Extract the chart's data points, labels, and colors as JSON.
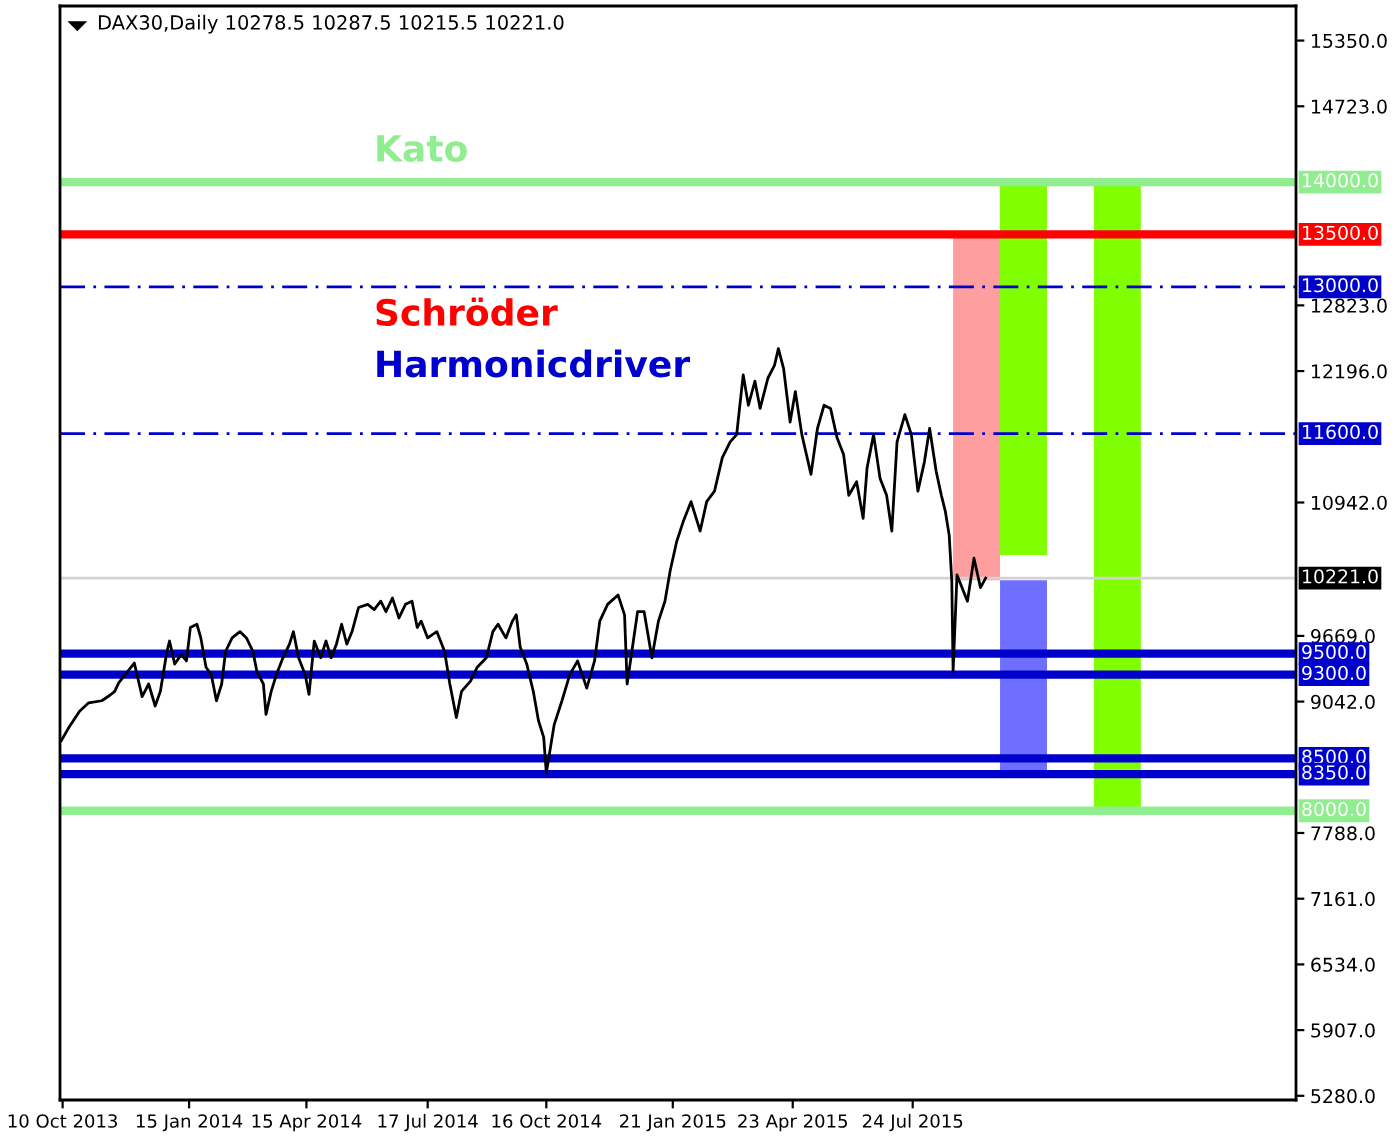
{
  "chart_data": {
    "type": "line",
    "title": "DAX30,Daily 10278.5 10287.5 10215.5 10221.0",
    "annotations": [
      "Kato",
      "Schröder",
      "Harmonicdriver"
    ],
    "series": [
      {
        "color": "#000000",
        "x": [
          "2013-10-09",
          "2013-10-15",
          "2013-10-23",
          "2013-10-30",
          "2013-11-09",
          "2013-11-15",
          "2013-11-19",
          "2013-11-22",
          "2013-11-27",
          "2013-12-04",
          "2013-12-10",
          "2013-12-15",
          "2013-12-20",
          "2013-12-24",
          "2013-12-29",
          "2013-12-31",
          "2014-01-04",
          "2014-01-09",
          "2014-01-13",
          "2014-01-16",
          "2014-01-21",
          "2014-01-24",
          "2014-01-28",
          "2014-02-01",
          "2014-02-05",
          "2014-02-09",
          "2014-02-12",
          "2014-02-17",
          "2014-02-23",
          "2014-02-28",
          "2014-03-05",
          "2014-03-08",
          "2014-03-13",
          "2014-03-15",
          "2014-03-19",
          "2014-03-23",
          "2014-03-28",
          "2014-04-02",
          "2014-04-05",
          "2014-04-09",
          "2014-04-14",
          "2014-04-17",
          "2014-04-21",
          "2014-04-26",
          "2014-04-30",
          "2014-05-04",
          "2014-05-08",
          "2014-05-12",
          "2014-05-16",
          "2014-05-20",
          "2014-05-25",
          "2014-06-01",
          "2014-06-06",
          "2014-06-11",
          "2014-06-15",
          "2014-06-20",
          "2014-06-25",
          "2014-06-30",
          "2014-07-05",
          "2014-07-09",
          "2014-07-12",
          "2014-07-17",
          "2014-07-24",
          "2014-07-30",
          "2014-08-03",
          "2014-08-08",
          "2014-08-12",
          "2014-08-19",
          "2014-08-24",
          "2014-08-31",
          "2014-09-05",
          "2014-09-09",
          "2014-09-15",
          "2014-09-20",
          "2014-09-23",
          "2014-09-26",
          "2014-10-01",
          "2014-10-06",
          "2014-10-10",
          "2014-10-14",
          "2014-10-16",
          "2014-10-22",
          "2014-10-28",
          "2014-11-03",
          "2014-11-09",
          "2014-11-16",
          "2014-11-22",
          "2014-11-26",
          "2014-12-02",
          "2014-12-10",
          "2014-12-15",
          "2014-12-17",
          "2014-12-25",
          "2014-12-30",
          "2015-01-05",
          "2015-01-10",
          "2015-01-15",
          "2015-01-19",
          "2015-01-24",
          "2015-01-29",
          "2015-02-04",
          "2015-02-11",
          "2015-02-16",
          "2015-02-22",
          "2015-02-28",
          "2015-03-06",
          "2015-03-11",
          "2015-03-16",
          "2015-03-20",
          "2015-03-25",
          "2015-03-29",
          "2015-04-04",
          "2015-04-09",
          "2015-04-12",
          "2015-04-16",
          "2015-04-21",
          "2015-04-25",
          "2015-04-30",
          "2015-05-07",
          "2015-05-12",
          "2015-05-17",
          "2015-05-22",
          "2015-05-27",
          "2015-06-01",
          "2015-06-05",
          "2015-06-11",
          "2015-06-16",
          "2015-06-19",
          "2015-06-24",
          "2015-06-29",
          "2015-07-04",
          "2015-07-08",
          "2015-07-12",
          "2015-07-18",
          "2015-07-23",
          "2015-07-28",
          "2015-08-02",
          "2015-08-06",
          "2015-08-11",
          "2015-08-15",
          "2015-08-18",
          "2015-08-21",
          "2015-08-23",
          "2015-08-24",
          "2015-08-27",
          "2015-09-04",
          "2015-09-09",
          "2015-09-14",
          "2015-09-18"
        ],
        "values": [
          8670,
          8800,
          8950,
          9030,
          9050,
          9100,
          9140,
          9220,
          9300,
          9410,
          9090,
          9210,
          9000,
          9140,
          9520,
          9620,
          9400,
          9490,
          9430,
          9750,
          9780,
          9650,
          9370,
          9300,
          9050,
          9210,
          9520,
          9650,
          9710,
          9650,
          9520,
          9330,
          9210,
          8920,
          9140,
          9300,
          9460,
          9590,
          9710,
          9460,
          9300,
          9110,
          9620,
          9460,
          9620,
          9460,
          9590,
          9780,
          9590,
          9710,
          9940,
          9970,
          9920,
          10000,
          9900,
          10030,
          9840,
          9970,
          10000,
          9750,
          9810,
          9650,
          9710,
          9520,
          9210,
          8890,
          9140,
          9240,
          9370,
          9460,
          9710,
          9780,
          9650,
          9810,
          9870,
          9560,
          9400,
          9140,
          8860,
          8700,
          8360,
          8820,
          9050,
          9300,
          9430,
          9170,
          9430,
          9810,
          9970,
          10060,
          9870,
          9210,
          9900,
          9900,
          9460,
          9810,
          10000,
          10290,
          10570,
          10760,
          10950,
          10670,
          10950,
          11050,
          11370,
          11520,
          11590,
          12160,
          11870,
          12100,
          11840,
          12130,
          12250,
          12410,
          12220,
          11710,
          12000,
          11590,
          11210,
          11650,
          11870,
          11840,
          11560,
          11400,
          11010,
          11140,
          10790,
          11270,
          11590,
          11170,
          11010,
          10670,
          11520,
          11780,
          11590,
          11050,
          11330,
          11650,
          11240,
          11010,
          10860,
          10630,
          10190,
          9330,
          10250,
          10000,
          10410,
          10130,
          10220
        ]
      },
      {
        "type": "bar",
        "x": [
          "2015-09-11",
          "2015-10-17",
          "2015-12-28"
        ],
        "base": [
          10200,
          10440,
          8000
        ],
        "values": [
          3300,
          3560,
          6000
        ],
        "colors": [
          "#ff9e9e",
          "#7fff00",
          "#7fff00"
        ]
      },
      {
        "type": "bar",
        "color": "#6f6fff",
        "x": [
          "2015-10-17"
        ],
        "base": [
          8350
        ],
        "values": [
          1850
        ]
      }
    ],
    "xlim": [
      "2013-10-08",
      "2016-05-13"
    ],
    "xticks": [
      {
        "value": "2013-10-10",
        "label": "10 Oct 2013"
      },
      {
        "value": "2014-01-15",
        "label": "15 Jan 2014"
      },
      {
        "value": "2014-04-15",
        "label": "15 Apr 2014"
      },
      {
        "value": "2014-07-17",
        "label": "17 Jul 2014"
      },
      {
        "value": "2014-10-16",
        "label": "16 Oct 2014"
      },
      {
        "value": "2015-01-21",
        "label": "21 Jan 2015"
      },
      {
        "value": "2015-04-23",
        "label": "23 Apr 2015"
      },
      {
        "value": "2015-07-24",
        "label": "24 Jul 2015"
      }
    ],
    "ylim": [
      5240,
      15680
    ],
    "yticks": [
      {
        "value": 15350,
        "label": "15350.0"
      },
      {
        "value": 14723,
        "label": "14723.0"
      },
      {
        "value": 12823,
        "label": "12823.0"
      },
      {
        "value": 12196,
        "label": "12196.0"
      },
      {
        "value": 10942,
        "label": "10942.0"
      },
      {
        "value": 9669,
        "label": "9669.0"
      },
      {
        "value": 9042,
        "label": "9042.0"
      },
      {
        "value": 7788,
        "label": "7788.0"
      },
      {
        "value": 7161,
        "label": "7161.0"
      },
      {
        "value": 6534,
        "label": "6534.0"
      },
      {
        "value": 5907,
        "label": "5907.0"
      },
      {
        "value": 5280,
        "label": "5280.0"
      }
    ],
    "ref_lines": [
      {
        "axis": "y",
        "value": 14000,
        "label": "14000.0",
        "color": "#90ee90"
      },
      {
        "axis": "y",
        "value": 13500,
        "label": "13500.0",
        "color": "#ff0000"
      },
      {
        "axis": "y",
        "value": 13000,
        "label": "13000.0",
        "color": "#0000cd",
        "line_style": "dashdot"
      },
      {
        "axis": "y",
        "value": 11600,
        "label": "11600.0",
        "color": "#0000cd",
        "line_style": "dashdot"
      },
      {
        "axis": "y",
        "value": 10221,
        "label": "10221.0",
        "color": "#d3d3d3"
      },
      {
        "axis": "y",
        "value": 9500,
        "label": "9500.0",
        "color": "#0000cd"
      },
      {
        "axis": "y",
        "value": 9300,
        "label": "9300.0",
        "color": "#0000cd"
      },
      {
        "axis": "y",
        "value": 8500,
        "label": "8500.0",
        "color": "#0000cd"
      },
      {
        "axis": "y",
        "value": 8350,
        "label": "8350.0",
        "color": "#0000cd"
      },
      {
        "axis": "y",
        "value": 8000,
        "label": "8000.0",
        "color": "#90ee90"
      }
    ]
  }
}
